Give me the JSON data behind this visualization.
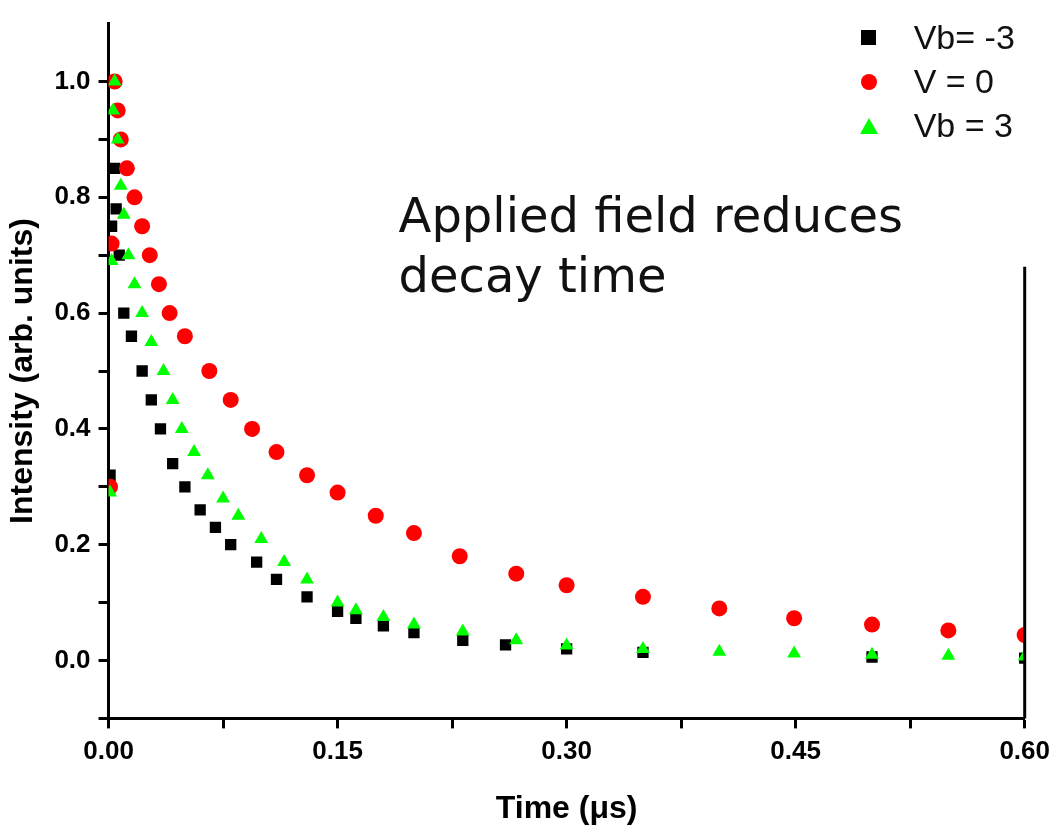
{
  "chart_data": {
    "type": "scatter",
    "xlabel": "Time (μs)",
    "ylabel": "Intensity (arb. units)",
    "annotations": [
      "Applied field reduces decay time"
    ],
    "xlim": [
      0,
      0.6
    ],
    "xticks": [
      {
        "value": 0,
        "label": "0.00"
      },
      {
        "value": 0.075,
        "label": null
      },
      0.15,
      {
        "value": 0.225,
        "label": null
      },
      {
        "value": 0.3,
        "label": "0.30"
      },
      {
        "value": 0.375,
        "label": null
      },
      0.45,
      {
        "value": 0.525,
        "label": null
      },
      {
        "value": 0.6,
        "label": "0.60"
      }
    ],
    "ylim": [
      -0.1,
      1.1
    ],
    "yticks": [
      {
        "value": -0.1,
        "label": null
      },
      {
        "value": 0,
        "label": "0.0"
      },
      {
        "value": 0.1,
        "label": null
      },
      0.2,
      {
        "value": 0.3,
        "label": null
      },
      0.4,
      {
        "value": 0.5,
        "label": null
      },
      0.6,
      {
        "value": 0.7,
        "label": null
      },
      0.8,
      {
        "value": 0.9,
        "label": null
      },
      {
        "value": 1,
        "label": "1.0"
      }
    ],
    "grid": false,
    "legend": "top right",
    "series": [
      {
        "name": "Vb= -3",
        "color": "#000000",
        "marker": "square",
        "x": [
          0.001,
          0.002,
          0.004,
          0.005,
          0.007,
          0.01,
          0.015,
          0.022,
          0.028,
          0.034,
          0.042,
          0.05,
          0.06,
          0.07,
          0.08,
          0.097,
          0.11,
          0.13,
          0.15,
          0.162,
          0.18,
          0.2,
          0.232,
          0.26,
          0.3,
          0.35,
          0.4,
          0.45,
          0.5,
          0.55,
          0.6
        ],
        "values": [
          0.32,
          0.75,
          0.85,
          0.78,
          0.7,
          0.6,
          0.56,
          0.5,
          0.45,
          0.4,
          0.34,
          0.3,
          0.26,
          0.23,
          0.2,
          0.17,
          0.14,
          0.11,
          0.085,
          0.073,
          0.06,
          0.048,
          0.035,
          0.027,
          0.02,
          0.014,
          null,
          null,
          0.006,
          null,
          0.004
        ]
      },
      {
        "name": "V = 0",
        "color": "#ff0000",
        "marker": "circle",
        "x": [
          0.001,
          0.002,
          0.004,
          0.006,
          0.008,
          0.012,
          0.017,
          0.022,
          0.027,
          0.033,
          0.04,
          0.05,
          0.066,
          0.08,
          0.094,
          0.11,
          0.13,
          0.15,
          0.175,
          0.2,
          0.23,
          0.267,
          0.3,
          0.35,
          0.4,
          0.449,
          0.5,
          0.55,
          0.6
        ],
        "values": [
          0.3,
          0.72,
          1.0,
          0.95,
          0.9,
          0.85,
          0.8,
          0.75,
          0.7,
          0.65,
          0.6,
          0.56,
          0.5,
          0.45,
          0.4,
          0.36,
          0.32,
          0.29,
          0.25,
          0.22,
          0.18,
          0.15,
          0.13,
          0.11,
          0.09,
          0.073,
          0.062,
          0.052,
          0.044
        ]
      },
      {
        "name": "Vb = 3",
        "color": "#00ff00",
        "marker": "triangle",
        "x": [
          0.001,
          0.002,
          0.003,
          0.004,
          0.006,
          0.008,
          0.01,
          0.013,
          0.017,
          0.022,
          0.028,
          0.036,
          0.042,
          0.048,
          0.056,
          0.065,
          0.075,
          0.085,
          0.1,
          0.115,
          0.13,
          0.15,
          0.162,
          0.18,
          0.2,
          0.232,
          0.267,
          0.3,
          0.35,
          0.4,
          0.449,
          0.5,
          0.55,
          0.6
        ],
        "values": [
          0.29,
          0.69,
          0.95,
          1.0,
          0.9,
          0.82,
          0.77,
          0.7,
          0.65,
          0.6,
          0.55,
          0.5,
          0.45,
          0.4,
          0.36,
          0.32,
          0.28,
          0.25,
          0.21,
          0.17,
          0.14,
          0.1,
          0.087,
          0.075,
          0.062,
          0.05,
          0.035,
          0.026,
          0.02,
          0.015,
          0.012,
          0.01,
          0.008,
          0.007
        ]
      }
    ]
  }
}
